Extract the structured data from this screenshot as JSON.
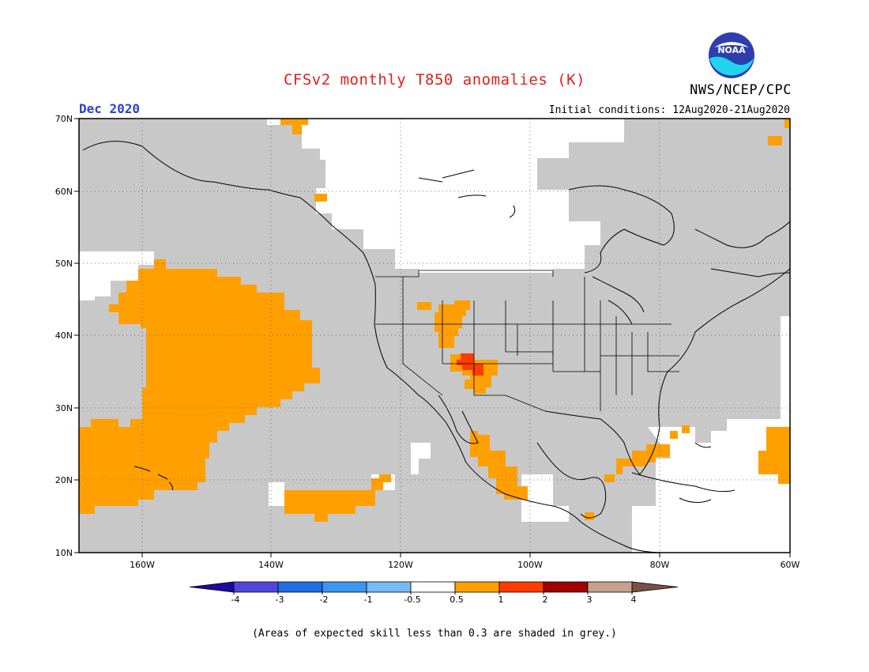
{
  "header": {
    "title": "CFSv2 monthly T850 anomalies (K)",
    "agency": "NWS/NCEP/CPC",
    "logo_text": "NOAA",
    "valid_month": "Dec 2020",
    "initial_conditions": "Initial conditions: 12Aug2020-21Aug2020"
  },
  "map": {
    "projection": "lat-lon",
    "lon_range": [
      -172,
      -60
    ],
    "lat_range": [
      10,
      70
    ],
    "lon_ticks": [
      "160W",
      "140W",
      "120W",
      "100W",
      "80W",
      "60W"
    ],
    "lat_ticks": [
      "10N",
      "20N",
      "30N",
      "40N",
      "50N",
      "60N",
      "70N"
    ],
    "grid": true,
    "colors": {
      "grey_low_skill": "#c8c8c8",
      "anom_0_5_to_1": "#ffa000",
      "anom_1_to_2": "#ff3c00",
      "coastline": "#000000"
    }
  },
  "colorbar": {
    "labels": [
      "-4",
      "-3",
      "-2",
      "-1",
      "-0.5",
      "0.5",
      "1",
      "2",
      "3",
      "4"
    ],
    "colors": [
      "#1e0aa0",
      "#5046dc",
      "#1e6ee6",
      "#3c96f0",
      "#78b9fa",
      "#ffffff",
      "#ffa000",
      "#ff3c00",
      "#a00000",
      "#c8a090",
      "#785046"
    ]
  },
  "footer": {
    "note": "(Areas of expected skill less than 0.3 are shaded in grey.)"
  }
}
